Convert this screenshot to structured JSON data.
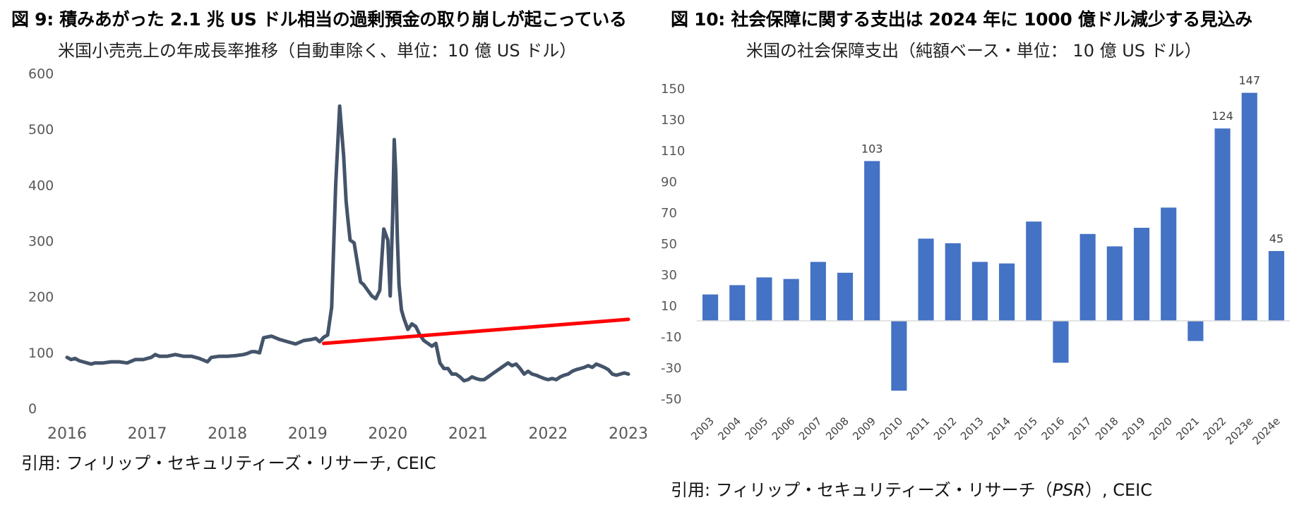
{
  "left_chart": {
    "title": "図 9: 積みあがった 2.1 兆 US ドル相当の過剰預金の取り崩しが起こっている",
    "subtitle": "米国小売売上の年成長率推移（自動車除く、単位：10 億 US ドル）",
    "source": "引用: フィリップ・セキュリティーズ・リサーチ, CEIC"
  },
  "right_chart": {
    "title": "図 10: 社会保障に関する支出は 2024 年に 1000 億ドル減少する見込み",
    "subtitle": "米国の社会保障支出（純額ベース・単位： 10 億 US ドル）",
    "source_prefix": "引用: フィリップ・セキュリティーズ・リサーチ（",
    "source_em": "PSR",
    "source_suffix": "）, CEIC"
  },
  "colors": {
    "line": "#44546a",
    "trend": "#ff0000",
    "bar": "#4472c4"
  },
  "chart_data": [
    {
      "type": "line",
      "title": "米国小売売上の年成長率推移（自動車除く、単位：10 億 US ドル）",
      "xlabel": "",
      "ylabel": "",
      "ylim": [
        0,
        600
      ],
      "yticks": [
        0,
        100,
        200,
        300,
        400,
        500,
        600
      ],
      "xlim": [
        2016,
        2023
      ],
      "xticks": [
        2016,
        2017,
        2018,
        2019,
        2020,
        2021,
        2022,
        2023
      ],
      "grid": false,
      "series": [
        {
          "x": [
            2016.0,
            2016.05,
            2016.1,
            2016.15,
            2016.2,
            2016.3,
            2016.35,
            2016.45,
            2016.55,
            2016.65,
            2016.75,
            2016.85,
            2016.95,
            2017.05,
            2017.1,
            2017.15,
            2017.25,
            2017.35,
            2017.45,
            2017.55,
            2017.65,
            2017.75,
            2017.8,
            2017.9,
            2018.0,
            2018.1,
            2018.2,
            2018.25,
            2018.3,
            2018.35,
            2018.4,
            2018.45,
            2018.55,
            2018.65,
            2018.75,
            2018.85,
            2018.95,
            2019.05,
            2019.1,
            2019.15,
            2019.2,
            2019.25,
            2019.3,
            2019.35,
            2019.4,
            2019.45,
            2019.48,
            2019.5,
            2019.53,
            2019.58,
            2019.62,
            2019.66,
            2019.7,
            2019.75,
            2019.8,
            2019.85,
            2019.9,
            2019.95,
            2020.0,
            2020.03,
            2020.06,
            2020.08,
            2020.1,
            2020.12,
            2020.14,
            2020.17,
            2020.2,
            2020.25,
            2020.3,
            2020.35,
            2020.4,
            2020.45,
            2020.5,
            2020.55,
            2020.6,
            2020.65,
            2020.7,
            2020.75,
            2020.8,
            2020.85,
            2020.9,
            2020.95,
            2021.0,
            2021.05,
            2021.1,
            2021.15,
            2021.2,
            2021.25,
            2021.3,
            2021.35,
            2021.4,
            2021.45,
            2021.5,
            2021.55,
            2021.6,
            2021.65,
            2021.7,
            2021.75,
            2021.8,
            2021.85,
            2021.9,
            2021.95,
            2022.0,
            2022.05,
            2022.1,
            2022.15,
            2022.2,
            2022.25,
            2022.3,
            2022.35,
            2022.4,
            2022.45,
            2022.5,
            2022.55,
            2022.6,
            2022.65,
            2022.7,
            2022.75,
            2022.8,
            2022.85,
            2022.9,
            2022.95,
            2023.0
          ],
          "y": [
            90,
            86,
            88,
            84,
            82,
            78,
            80,
            80,
            82,
            82,
            80,
            86,
            86,
            90,
            95,
            92,
            92,
            95,
            92,
            92,
            88,
            82,
            90,
            92,
            92,
            93,
            95,
            97,
            100,
            100,
            98,
            125,
            128,
            122,
            118,
            114,
            120,
            122,
            124,
            118,
            126,
            130,
            180,
            400,
            540,
            450,
            370,
            340,
            300,
            295,
            260,
            225,
            220,
            210,
            200,
            195,
            210,
            320,
            300,
            200,
            340,
            480,
            420,
            300,
            220,
            175,
            160,
            140,
            150,
            145,
            130,
            120,
            115,
            110,
            115,
            80,
            70,
            70,
            60,
            60,
            55,
            48,
            50,
            55,
            52,
            50,
            50,
            55,
            60,
            65,
            70,
            75,
            80,
            75,
            78,
            70,
            60,
            65,
            60,
            58,
            55,
            52,
            50,
            52,
            50,
            55,
            58,
            60,
            65,
            68,
            70,
            72,
            75,
            72,
            78,
            75,
            72,
            68,
            60,
            58,
            60,
            62,
            60
          ],
          "name": ""
        },
        {
          "x": [
            2019.2,
            2023.0
          ],
          "y": [
            115,
            158
          ],
          "name": ""
        }
      ]
    },
    {
      "type": "bar",
      "title": "米国の社会保障支出（純額ベース・単位： 10 億 US ドル）",
      "xlabel": "",
      "ylabel": "",
      "ylim": [
        -50,
        150
      ],
      "yticks": [
        -50,
        -30,
        -10,
        10,
        30,
        50,
        70,
        90,
        110,
        130,
        150
      ],
      "grid": false,
      "categories": [
        "2003",
        "2004",
        "2005",
        "2006",
        "2007",
        "2008",
        "2009",
        "2010",
        "2011",
        "2012",
        "2013",
        "2014",
        "2015",
        "2016",
        "2017",
        "2018",
        "2019",
        "2020",
        "2021",
        "2022",
        "2023e",
        "2024e"
      ],
      "values": [
        17,
        23,
        28,
        27,
        38,
        31,
        103,
        -45,
        53,
        50,
        38,
        37,
        64,
        -27,
        56,
        48,
        60,
        73,
        -13,
        124,
        147,
        45
      ],
      "data_labels": [
        {
          "category": "2009",
          "text": "103"
        },
        {
          "category": "2022",
          "text": "124"
        },
        {
          "category": "2023e",
          "text": "147"
        },
        {
          "category": "2024e",
          "text": "45"
        }
      ]
    }
  ]
}
